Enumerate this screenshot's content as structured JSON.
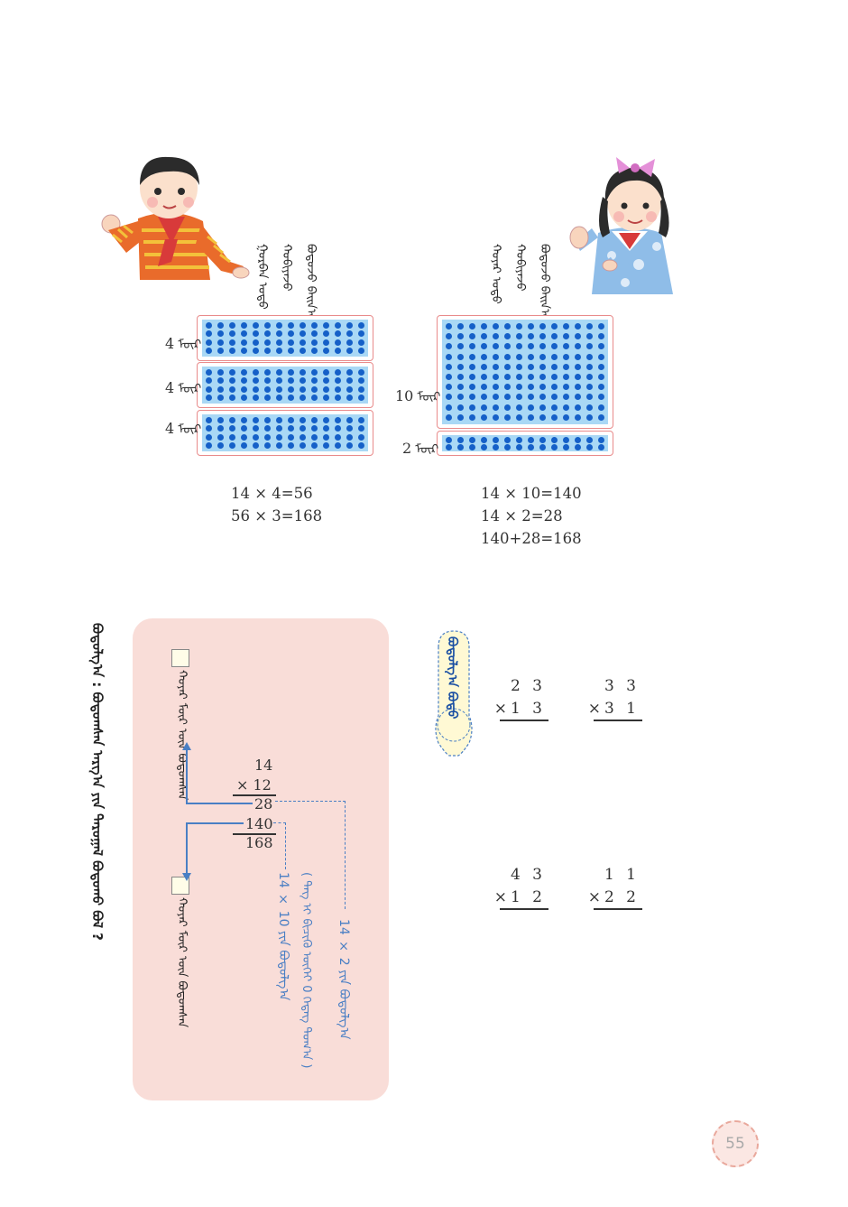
{
  "boy_speech": [
    "ᠭᠤᠷᠪᠠᠨ ᠣᠳᠣ",
    "ᠬᠤᠪᠢᠶᠠᠵᠤ",
    "ᠪᠣᠳᠣᠵᠤ ᠪᠠᠢᠨ᠎ᠠ :"
  ],
  "girl_speech": [
    "ᠬᠣᠶᠠᠷ ᠣᠳᠣ",
    "ᠬᠤᠪᠢᠶᠠᠵᠤ",
    "ᠪᠣᠳᠣᠵᠤ ᠪᠠᠢᠨ᠎ᠠ :"
  ],
  "left_grid": {
    "rows": [
      {
        "count": "4",
        "unit": "ᠮᠦᠷ"
      },
      {
        "count": "4",
        "unit": "ᠮᠦᠷ"
      },
      {
        "count": "4",
        "unit": "ᠮᠦᠷ"
      }
    ],
    "equations": [
      "14 × 4=56",
      "56 × 3=168"
    ]
  },
  "right_grid": {
    "rows": [
      {
        "count": "10",
        "unit": "ᠮᠦᠷ"
      },
      {
        "count": "2",
        "unit": "ᠮᠦᠷ"
      }
    ],
    "equations": [
      "14 × 10=140",
      "14 × 2=28",
      "140+28=168"
    ]
  },
  "question": "ᠪᠣᠳᠣᠯᠭ᠎ᠠ : ᠪᠣᠳᠣᠭᠰᠠᠨ ᠠᠷᠭ᠎ᠠ ᠶᠢᠨ ᠳᠠᠷᠤᠭᠠᠯ ᠪᠣᠳᠣᠬᠤ ᠪᠣᠯ ?",
  "panel": {
    "top_label": "ᠬᠣᠶᠠᠷ ᠮᠦᠷ ᠦᠨ ᠪᠣᠳᠣᠭᠰᠠᠨ",
    "bottom_label": "ᠬᠣᠶᠠᠷ ᠮᠦᠷ ᠦᠨ ᠪᠣᠳᠣᠭᠰᠠᠨ",
    "calc": {
      "multiplicand": "14",
      "multiplier": "× 12",
      "partial1": "28",
      "partial2": "140",
      "result": "168"
    },
    "note_1": "14 × 2 ᠶᠢᠨ ᠪᠣᠳᠣᠯᠭ᠎ᠠ",
    "note_2": "14 × 10 ᠶᠢᠨ ᠪᠣᠳᠣᠯᠭ᠎ᠠ",
    "note_3": "( ᠲᠡᠭ ᠢ ᠪᠢᠴᠢᠬᠦ ᠦᠭᠡᠢ 0 ᠭᠡᠳᠡᠭ ᠲᠣᠭ᠎ᠠ )"
  },
  "bubble_label": "ᠪᠣᠳᠣᠯᠭ᠎ᠠ ᠪᠣᠳᠣ",
  "exercises": [
    {
      "top": "2 3",
      "bottom": "×1 3"
    },
    {
      "top": "3 3",
      "bottom": "×3 1"
    },
    {
      "top": "4 3",
      "bottom": "×1 2"
    },
    {
      "top": "1 1",
      "bottom": "×2 2"
    }
  ],
  "page_number": "55",
  "colors": {
    "panel_bg": "#f9ddd8",
    "dot_blue": "#1560c8",
    "grid_bg": "#a9d8f5",
    "grid_border": "#e98b8b",
    "note_blue": "#4a7fc4"
  }
}
